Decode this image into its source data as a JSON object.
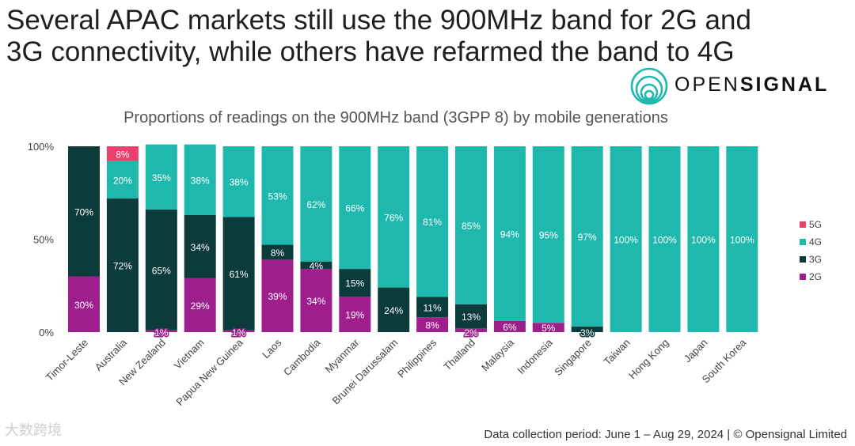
{
  "title_line1": "Several APAC markets still use the 900MHz band for 2G and",
  "title_line2": "3G connectivity, while others have refarmed the band to 4G",
  "brand": {
    "light": "OPEN",
    "bold": "SIGNAL"
  },
  "footer": "Data collection period: June 1 – Aug 29, 2024 | © Opensignal Limited",
  "watermark": "大数跨境",
  "colors": {
    "2G": "#9e1f8c",
    "3G": "#0c3b3b",
    "4G": "#1fb8ad",
    "5G": "#e8416c",
    "text": "#444444",
    "brand": "#1fb8ad"
  },
  "chart_data": {
    "type": "bar",
    "stacked": true,
    "title": "Proportions of readings on the 900MHz band (3GPP 8) by mobile generations",
    "ylim": [
      0,
      100
    ],
    "y_ticks": [
      "0%",
      "50%",
      "100%"
    ],
    "legend_position": "right",
    "categories": [
      "Timor-Leste",
      "Australia",
      "New Zealand",
      "Vietnam",
      "Papua New Guinea",
      "Laos",
      "Cambodia",
      "Myanmar",
      "Brunei Darussalam",
      "Philippines",
      "Thailand",
      "Malaysia",
      "Indonesia",
      "Singapore",
      "Taiwan",
      "Hong Kong",
      "Japan",
      "South Korea"
    ],
    "series": [
      {
        "name": "2G",
        "values": [
          30,
          0,
          1,
          29,
          1,
          39,
          34,
          19,
          0,
          8,
          2,
          6,
          5,
          0,
          0,
          0,
          0,
          0
        ],
        "labels": [
          "30%",
          "",
          "1%",
          "29%",
          "1%",
          "39%",
          "34%",
          "19%",
          "",
          "8%",
          "2%",
          "6%",
          "5%",
          "",
          "",
          "",
          "",
          ""
        ]
      },
      {
        "name": "3G",
        "values": [
          70,
          72,
          65,
          34,
          61,
          8,
          4,
          15,
          24,
          11,
          13,
          0,
          0,
          3,
          0,
          0,
          0,
          0
        ],
        "labels": [
          "70%",
          "72%",
          "65%",
          "34%",
          "61%",
          "8%",
          "4%",
          "15%",
          "24%",
          "11%",
          "13%",
          "",
          "",
          "3%",
          "",
          "",
          "",
          ""
        ]
      },
      {
        "name": "4G",
        "values": [
          0,
          20,
          35,
          38,
          38,
          53,
          62,
          66,
          76,
          81,
          85,
          94,
          95,
          97,
          100,
          100,
          100,
          100
        ],
        "labels": [
          "",
          "20%",
          "35%",
          "38%",
          "38%",
          "53%",
          "62%",
          "66%",
          "76%",
          "81%",
          "85%",
          "94%",
          "95%",
          "97%",
          "100%",
          "100%",
          "100%",
          "100%"
        ]
      },
      {
        "name": "5G",
        "values": [
          0,
          8,
          0,
          0,
          0,
          0,
          0,
          0,
          0,
          0,
          0,
          0,
          0,
          0,
          0,
          0,
          0,
          0
        ],
        "labels": [
          "",
          "8%",
          "",
          "",
          "",
          "",
          "",
          "",
          "",
          "",
          "",
          "",
          "",
          "",
          "",
          "",
          "",
          ""
        ]
      }
    ],
    "legend_order": [
      "5G",
      "4G",
      "3G",
      "2G"
    ]
  }
}
